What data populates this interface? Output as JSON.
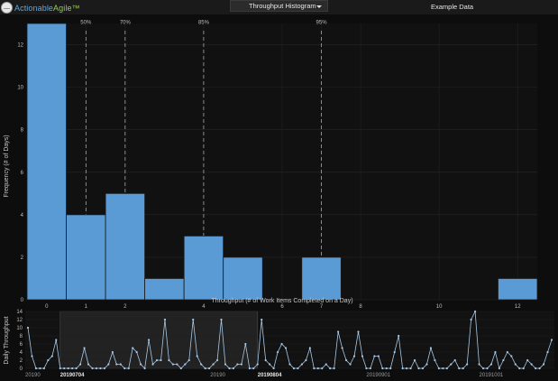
{
  "app": {
    "brand_primary": "Actionable",
    "brand_accent": "Agile™"
  },
  "toolbar": {
    "view_selected": "Throughput Histogram",
    "dataset_label": "Example Data"
  },
  "colors": {
    "bar_fill": "#5b9bd5",
    "line": "#a8c8e6",
    "brand_blue": "#5aa9e6",
    "brand_green": "#8fd14f"
  },
  "icons": [
    "logo-icon",
    "chevron-down-icon"
  ],
  "chart_data": [
    {
      "type": "bar",
      "xlabel": "Throughput (# of Work Items Completed on a Day)",
      "ylabel": "Frequency (# of Days)",
      "x_ticks": [
        0,
        1,
        2,
        4,
        6,
        7,
        8,
        10,
        12
      ],
      "y_ticks": [
        0,
        2,
        4,
        6,
        8,
        10,
        12
      ],
      "ylim": [
        0,
        13
      ],
      "categories": [
        0,
        1,
        2,
        3,
        4,
        5,
        6,
        7,
        8,
        9,
        10,
        11,
        12
      ],
      "values": [
        13,
        4,
        5,
        1,
        3,
        2,
        0,
        2,
        0,
        0,
        0,
        0,
        1
      ],
      "percentiles": [
        {
          "label": "50%",
          "x": 1
        },
        {
          "label": "70%",
          "x": 2
        },
        {
          "label": "85%",
          "x": 4
        },
        {
          "label": "95%",
          "x": 7
        }
      ],
      "grid": true
    },
    {
      "type": "line",
      "ylabel": "Daily Throughput",
      "y_ticks": [
        0,
        2,
        4,
        6,
        8,
        10,
        12,
        14
      ],
      "ylim": [
        0,
        14
      ],
      "date_labels": [
        "20190",
        "20190704",
        "20190",
        "20190804",
        "20190901",
        "20191001"
      ],
      "values": [
        10,
        3,
        0,
        0,
        0,
        2,
        3,
        7,
        0,
        0,
        0,
        0,
        0,
        1,
        5,
        1,
        0,
        0,
        0,
        0,
        1,
        4,
        1,
        1,
        0,
        0,
        5,
        4,
        1,
        0,
        7,
        1,
        2,
        2,
        12,
        2,
        1,
        1,
        0,
        1,
        2,
        12,
        3,
        1,
        0,
        0,
        1,
        2,
        12,
        1,
        0,
        0,
        1,
        1,
        6,
        0,
        0,
        1,
        12,
        2,
        1,
        0,
        4,
        6,
        5,
        1,
        0,
        0,
        1,
        2,
        5,
        0,
        0,
        0,
        1,
        0,
        0,
        9,
        5,
        2,
        1,
        3,
        9,
        3,
        0,
        0,
        3,
        3,
        0,
        0,
        0,
        4,
        8,
        0,
        0,
        0,
        2,
        0,
        0,
        1,
        5,
        2,
        0,
        0,
        0,
        1,
        2,
        0,
        0,
        1,
        12,
        14,
        1,
        0,
        0,
        1,
        4,
        0,
        2,
        4,
        3,
        1,
        0,
        0,
        2,
        1,
        0,
        0,
        1,
        4,
        7
      ],
      "brush": {
        "start_index": 8,
        "end_index": 57
      }
    }
  ]
}
